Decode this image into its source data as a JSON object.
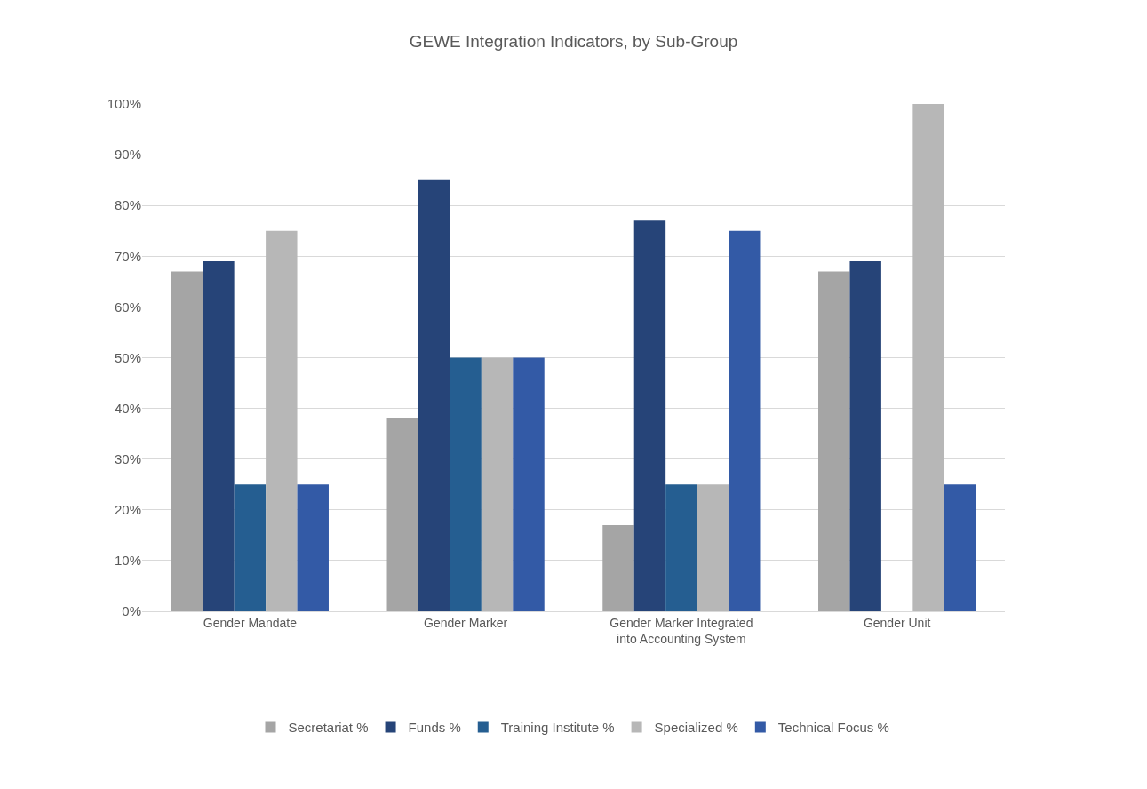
{
  "chart_data": {
    "type": "bar",
    "title": "GEWE Integration Indicators, by Sub-Group",
    "categories": [
      "Gender Mandate",
      "Gender Marker",
      "Gender Marker Integrated\ninto Accounting System",
      "Gender Unit"
    ],
    "series": [
      {
        "name": "Secretariat %",
        "color": "#a5a5a5",
        "values": [
          67,
          38,
          17,
          67
        ]
      },
      {
        "name": "Funds %",
        "color": "#264478",
        "values": [
          69,
          85,
          77,
          69
        ]
      },
      {
        "name": "Training Institute %",
        "color": "#255e91",
        "values": [
          25,
          50,
          25,
          0
        ]
      },
      {
        "name": "Specialized %",
        "color": "#b7b7b7",
        "values": [
          75,
          50,
          25,
          100
        ]
      },
      {
        "name": "Technical Focus %",
        "color": "#335aa6",
        "values": [
          25,
          50,
          75,
          25
        ]
      }
    ],
    "ylim": [
      0,
      100
    ],
    "yticks": [
      {
        "value": 0,
        "label": "0%"
      },
      {
        "value": 10,
        "label": "10%"
      },
      {
        "value": 20,
        "label": "20%"
      },
      {
        "value": 30,
        "label": "30%"
      },
      {
        "value": 40,
        "label": "40%"
      },
      {
        "value": 50,
        "label": "50%"
      },
      {
        "value": 60,
        "label": "60%"
      },
      {
        "value": 70,
        "label": "70%"
      },
      {
        "value": 80,
        "label": "80%"
      },
      {
        "value": 90,
        "label": "90%"
      },
      {
        "value": 100,
        "label": "100%"
      }
    ],
    "grid": "y",
    "legend": "bottom"
  }
}
